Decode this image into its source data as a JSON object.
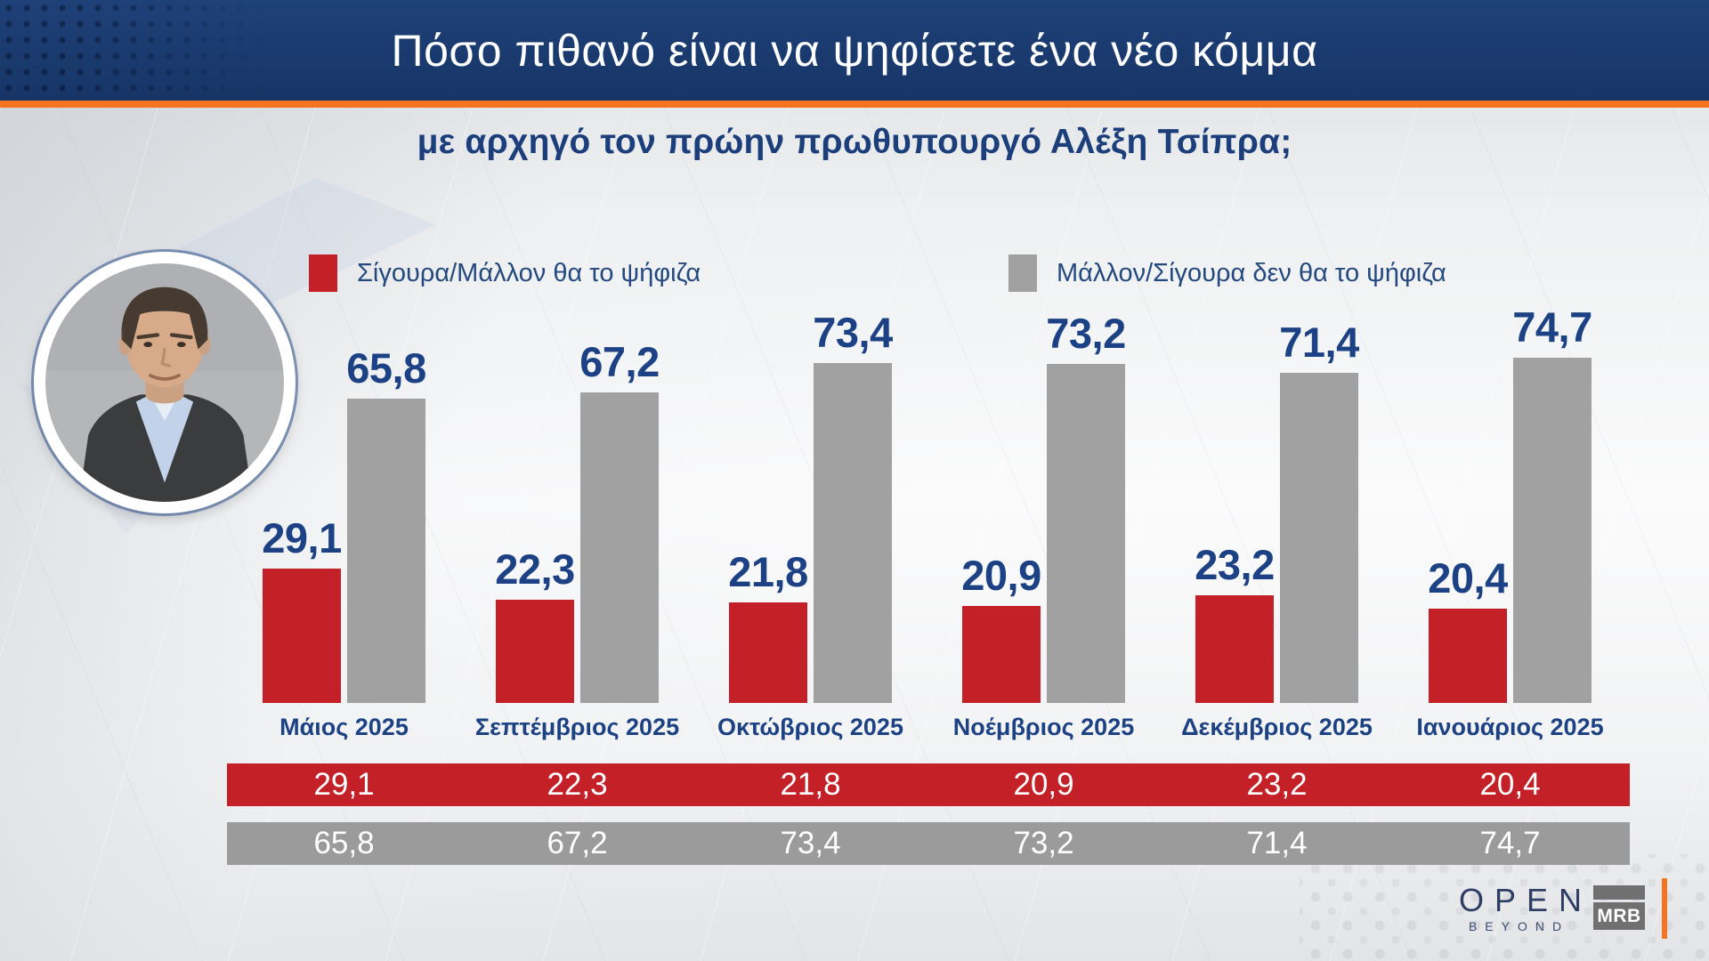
{
  "header": {
    "title": "Πόσο πιθανό είναι να ψηφίσετε ένα νέο κόμμα",
    "subtitle": "με αρχηγό τον πρώην πρωθυπουργό Αλέξη Τσίπρα;"
  },
  "legend": {
    "items": [
      {
        "label": "Σίγουρα/Μάλλον θα το ψήφιζα",
        "color": "#c32127"
      },
      {
        "label": "Μάλλον/Σίγουρα δεν θα το ψήφιζα",
        "color": "#a1a1a1"
      }
    ]
  },
  "chart_data": {
    "type": "bar",
    "title": "Πόσο πιθανό είναι να ψηφίσετε ένα νέο κόμμα",
    "subtitle": "με αρχηγό τον πρώην πρωθυπουργό Αλέξη Τσίπρα;",
    "categories": [
      "Μάιος 2025",
      "Σεπτέμβριος 2025",
      "Οκτώβριος 2025",
      "Νοέμβριος 2025",
      "Δεκέμβριος 2025",
      "Ιανουάριος 2025"
    ],
    "series": [
      {
        "name": "Σίγουρα/Μάλλον θα το ψήφιζα",
        "color": "#c32127",
        "values": [
          29.1,
          22.3,
          21.8,
          20.9,
          23.2,
          20.4
        ],
        "display": [
          "29,1",
          "22,3",
          "21,8",
          "20,9",
          "23,2",
          "20,4"
        ]
      },
      {
        "name": "Μάλλον/Σίγουρα δεν θα το ψήφιζα",
        "color": "#a1a1a1",
        "values": [
          65.8,
          67.2,
          73.4,
          73.2,
          71.4,
          74.7
        ],
        "display": [
          "65,8",
          "67,2",
          "73,4",
          "73,2",
          "71,4",
          "74,7"
        ]
      }
    ],
    "ylim": [
      0,
      80
    ],
    "grid": false,
    "legend_position": "top",
    "value_label_color": "#1c4184"
  },
  "table": {
    "rows": [
      {
        "color": "#c32127",
        "values": [
          "29,1",
          "22,3",
          "21,8",
          "20,9",
          "23,2",
          "20,4"
        ]
      },
      {
        "color": "#9b9b9b",
        "values": [
          "65,8",
          "67,2",
          "73,4",
          "73,2",
          "71,4",
          "74,7"
        ]
      }
    ]
  },
  "footer": {
    "open_label": "OPEN",
    "beyond_label": "BEYOND",
    "mrb_label": "MRB"
  },
  "colors": {
    "header_bg": "#173567",
    "accent_orange": "#f4741f",
    "navy_text": "#1c4184",
    "yes_red": "#c32127",
    "no_gray": "#a1a1a1"
  }
}
